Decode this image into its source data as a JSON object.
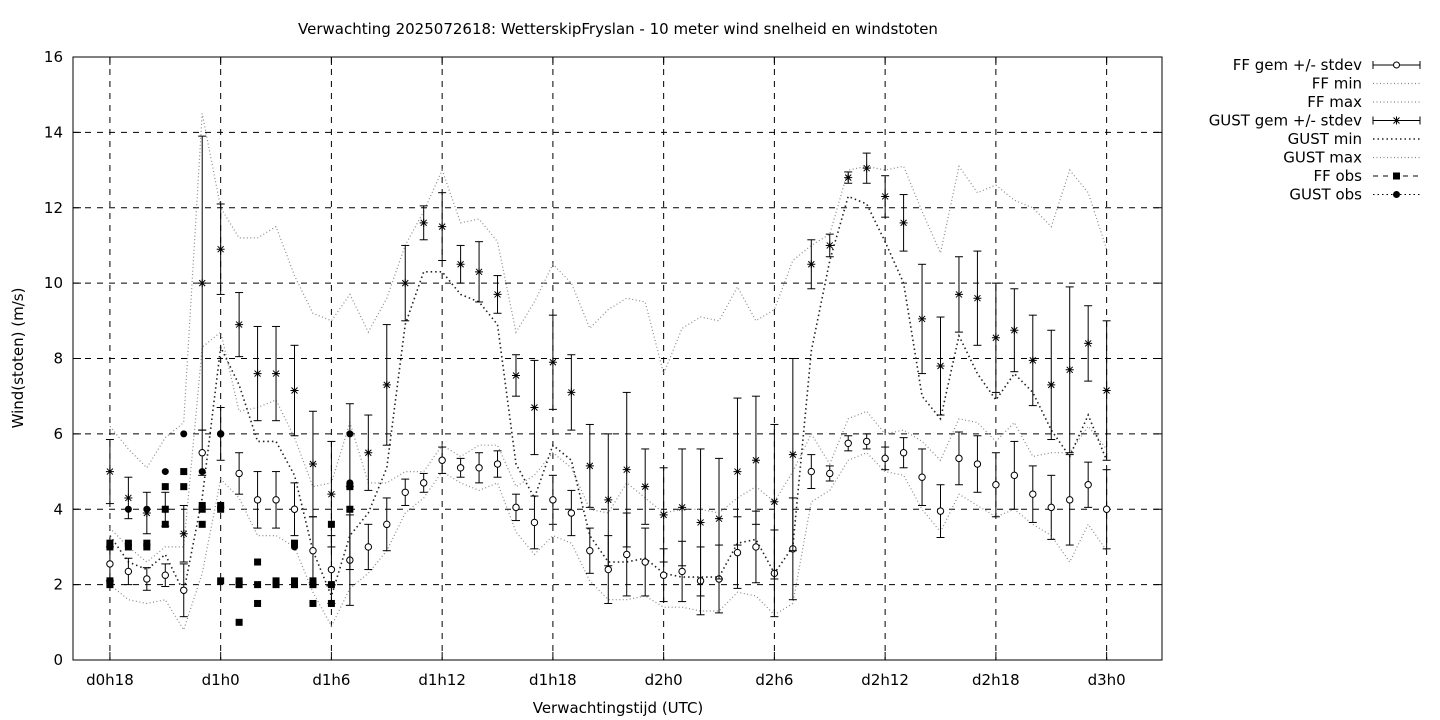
{
  "chart_data": {
    "type": "line",
    "title": "Verwachting 2025072618: WetterskipFryslan - 10 meter wind snelheid en windstoten",
    "xlabel": "Verwachtingstijd (UTC)",
    "ylabel": "Wind(stoten) (m/s)",
    "xlim": [
      16,
      75
    ],
    "ylim": [
      0,
      16
    ],
    "grid": true,
    "legend_position": "outside-right",
    "x_ticks": [
      {
        "x": 18,
        "label": "d0h18"
      },
      {
        "x": 24,
        "label": "d1h0"
      },
      {
        "x": 30,
        "label": "d1h6"
      },
      {
        "x": 36,
        "label": "d1h12"
      },
      {
        "x": 42,
        "label": "d1h18"
      },
      {
        "x": 48,
        "label": "d2h0"
      },
      {
        "x": 54,
        "label": "d2h6"
      },
      {
        "x": 60,
        "label": "d2h12"
      },
      {
        "x": 66,
        "label": "d2h18"
      },
      {
        "x": 72,
        "label": "d3h0"
      }
    ],
    "y_ticks": [
      {
        "y": 0,
        "label": "0"
      },
      {
        "y": 2,
        "label": "2"
      },
      {
        "y": 4,
        "label": "4"
      },
      {
        "y": 6,
        "label": "6"
      },
      {
        "y": 8,
        "label": "8"
      },
      {
        "y": 10,
        "label": "10"
      },
      {
        "y": 12,
        "label": "12"
      },
      {
        "y": 14,
        "label": "14"
      },
      {
        "y": 16,
        "label": "16"
      }
    ],
    "x": [
      18,
      19,
      20,
      21,
      22,
      23,
      24,
      25,
      26,
      27,
      28,
      29,
      30,
      31,
      32,
      33,
      34,
      35,
      36,
      37,
      38,
      39,
      40,
      41,
      42,
      43,
      44,
      45,
      46,
      47,
      48,
      49,
      50,
      51,
      52,
      53,
      54,
      55,
      56,
      57,
      58,
      59,
      60,
      61,
      62,
      63,
      64,
      65,
      66,
      67,
      68,
      69,
      70,
      71,
      72
    ],
    "series": [
      {
        "name": "FF gem +/- stdev",
        "style": "errorbar-open-circle",
        "mean": [
          2.55,
          2.35,
          2.15,
          2.25,
          1.85,
          5.5,
          6.0,
          4.95,
          4.25,
          4.25,
          4.0,
          2.9,
          2.4,
          2.65,
          3.0,
          3.6,
          4.45,
          4.7,
          5.3,
          5.1,
          5.1,
          5.2,
          4.05,
          3.65,
          4.25,
          3.9,
          2.9,
          2.4,
          2.8,
          2.6,
          2.25,
          2.35,
          2.1,
          2.15,
          2.85,
          3.0,
          2.3,
          2.95,
          5.0,
          4.95,
          5.75,
          5.8,
          5.35,
          5.5,
          4.85,
          3.95,
          5.35,
          5.2,
          4.65,
          4.9,
          4.4,
          4.05,
          4.25,
          4.65,
          4.0
        ],
        "stdev": [
          0.45,
          0.35,
          0.3,
          0.3,
          0.7,
          0.6,
          0.7,
          0.55,
          0.75,
          0.75,
          0.7,
          0.9,
          0.9,
          1.2,
          0.6,
          0.7,
          0.35,
          0.25,
          0.35,
          0.25,
          0.4,
          0.35,
          0.35,
          0.7,
          0.65,
          0.6,
          0.6,
          0.9,
          1.1,
          0.9,
          0.7,
          0.8,
          0.9,
          0.9,
          0.95,
          0.95,
          1.15,
          1.35,
          0.45,
          0.2,
          0.2,
          0.2,
          0.3,
          0.4,
          0.75,
          0.7,
          0.7,
          0.75,
          0.85,
          0.9,
          0.75,
          0.85,
          1.2,
          0.6,
          1.05
        ]
      },
      {
        "name": "FF min",
        "style": "dotted",
        "values": [
          2.0,
          1.6,
          1.5,
          1.6,
          0.8,
          2.3,
          4.8,
          4.3,
          3.3,
          3.3,
          3.0,
          1.8,
          0.9,
          1.9,
          2.3,
          2.9,
          3.9,
          4.3,
          5.0,
          4.7,
          4.5,
          4.7,
          3.4,
          2.8,
          3.3,
          3.1,
          2.1,
          1.6,
          1.6,
          1.7,
          1.4,
          1.4,
          1.3,
          1.3,
          1.8,
          1.7,
          1.2,
          1.5,
          4.2,
          4.5,
          5.3,
          5.5,
          5.0,
          4.9,
          4.0,
          3.4,
          4.4,
          4.1,
          3.8,
          4.0,
          3.6,
          3.3,
          2.6,
          3.6,
          2.9
        ]
      },
      {
        "name": "FF max",
        "style": "dotted",
        "values": [
          3.5,
          3.0,
          2.6,
          3.0,
          3.0,
          8.3,
          8.7,
          6.6,
          6.7,
          6.9,
          5.9,
          4.6,
          4.7,
          6.3,
          4.7,
          4.7,
          5.0,
          5.0,
          5.7,
          5.4,
          5.7,
          5.7,
          4.6,
          4.9,
          5.5,
          5.1,
          4.0,
          3.9,
          4.7,
          4.3,
          3.9,
          4.0,
          4.0,
          3.9,
          4.3,
          4.6,
          4.2,
          5.0,
          6.0,
          5.2,
          6.4,
          6.6,
          6.0,
          6.1,
          5.8,
          5.3,
          6.4,
          6.3,
          5.8,
          6.3,
          5.4,
          5.5,
          5.5,
          6.2,
          5.6
        ]
      },
      {
        "name": "GUST gem +/- stdev",
        "style": "errorbar-star",
        "mean": [
          5.0,
          4.3,
          3.9,
          4.0,
          3.35,
          10.0,
          10.9,
          8.9,
          7.6,
          7.6,
          7.15,
          5.2,
          4.4,
          4.6,
          5.5,
          7.3,
          10.0,
          11.6,
          11.5,
          10.5,
          10.3,
          9.7,
          7.55,
          6.7,
          7.9,
          7.1,
          5.15,
          4.25,
          5.05,
          4.6,
          3.85,
          4.05,
          3.65,
          3.75,
          5.0,
          5.3,
          4.2,
          5.45,
          10.5,
          11.0,
          12.8,
          13.05,
          12.3,
          11.6,
          9.05,
          7.8,
          9.7,
          9.6,
          8.55,
          8.75,
          7.95,
          7.3,
          7.7,
          8.4,
          7.15
        ],
        "stdev": [
          0.85,
          0.55,
          0.55,
          0.45,
          0.75,
          3.9,
          1.2,
          0.85,
          1.25,
          1.25,
          1.2,
          1.4,
          1.4,
          2.2,
          1.0,
          1.6,
          1.0,
          0.45,
          0.9,
          0.5,
          0.8,
          0.5,
          0.55,
          1.25,
          1.25,
          1.0,
          1.1,
          1.75,
          2.05,
          1.0,
          1.25,
          1.55,
          1.95,
          1.6,
          1.95,
          1.7,
          2.05,
          2.55,
          0.65,
          0.3,
          0.15,
          0.4,
          0.55,
          0.75,
          1.45,
          1.3,
          1.0,
          1.25,
          1.45,
          1.1,
          1.2,
          1.45,
          2.2,
          1.0,
          1.85
        ]
      },
      {
        "name": "GUST min",
        "style": "dotted-dense",
        "values": [
          3.3,
          2.6,
          2.4,
          2.8,
          1.8,
          4.3,
          8.3,
          7.3,
          5.8,
          5.8,
          4.9,
          2.9,
          1.7,
          3.3,
          3.9,
          5.1,
          8.9,
          10.3,
          10.3,
          9.7,
          9.5,
          8.9,
          5.2,
          4.3,
          5.7,
          5.3,
          3.3,
          2.6,
          2.6,
          2.7,
          2.3,
          2.2,
          2.2,
          2.2,
          3.1,
          3.2,
          2.3,
          3.0,
          8.2,
          10.6,
          12.3,
          12.1,
          11.1,
          10.0,
          7.0,
          6.4,
          8.6,
          7.6,
          6.9,
          7.6,
          7.1,
          6.1,
          5.4,
          6.5,
          5.3
        ]
      },
      {
        "name": "GUST max",
        "style": "dotted",
        "values": [
          6.2,
          5.6,
          5.1,
          5.9,
          6.3,
          14.5,
          12.0,
          11.2,
          11.2,
          11.5,
          10.2,
          9.2,
          9.0,
          9.7,
          8.7,
          9.6,
          11.0,
          11.9,
          13.0,
          11.6,
          11.7,
          11.1,
          8.7,
          9.5,
          10.5,
          10.0,
          8.8,
          9.3,
          9.6,
          9.5,
          7.6,
          8.8,
          9.1,
          9.0,
          9.9,
          9.0,
          9.3,
          10.6,
          11.0,
          11.3,
          13.0,
          13.1,
          13.0,
          13.1,
          11.9,
          10.8,
          13.1,
          12.4,
          12.6,
          12.2,
          12.0,
          11.5,
          13.0,
          12.4,
          10.9
        ]
      }
    ],
    "observations": [
      {
        "name": "FF obs",
        "style": "square",
        "points": [
          [
            18,
            2.0
          ],
          [
            18,
            2.1
          ],
          [
            18,
            3.0
          ],
          [
            18,
            3.1
          ],
          [
            19,
            3.0
          ],
          [
            19,
            3.1
          ],
          [
            20,
            3.0
          ],
          [
            20,
            3.1
          ],
          [
            21,
            3.6
          ],
          [
            21,
            4.0
          ],
          [
            21,
            4.6
          ],
          [
            22,
            4.6
          ],
          [
            22,
            5.0
          ],
          [
            23,
            3.6
          ],
          [
            23,
            4.0
          ],
          [
            23,
            4.1
          ],
          [
            24,
            4.0
          ],
          [
            24,
            4.1
          ],
          [
            24,
            2.1
          ],
          [
            25,
            2.0
          ],
          [
            25,
            2.1
          ],
          [
            25,
            1.0
          ],
          [
            26,
            1.5
          ],
          [
            26,
            2.0
          ],
          [
            26,
            2.6
          ],
          [
            27,
            2.0
          ],
          [
            27,
            2.1
          ],
          [
            28,
            2.0
          ],
          [
            28,
            2.1
          ],
          [
            28,
            3.1
          ],
          [
            29,
            1.5
          ],
          [
            29,
            2.0
          ],
          [
            29,
            2.1
          ],
          [
            30,
            1.5
          ],
          [
            30,
            2.0
          ],
          [
            30,
            3.6
          ],
          [
            31,
            4.0
          ],
          [
            31,
            4.6
          ]
        ]
      },
      {
        "name": "GUST obs",
        "style": "circle",
        "points": [
          [
            19,
            4.0
          ],
          [
            20,
            4.0
          ],
          [
            21,
            5.0
          ],
          [
            22,
            6.0
          ],
          [
            23,
            5.0
          ],
          [
            24,
            6.0
          ],
          [
            28,
            3.0
          ],
          [
            31,
            4.7
          ],
          [
            31,
            6.0
          ]
        ]
      }
    ],
    "legend": [
      {
        "label": "FF gem +/- stdev",
        "marker": "open-circle-errorbar"
      },
      {
        "label": "FF min",
        "marker": "dotted"
      },
      {
        "label": "FF max",
        "marker": "dotted"
      },
      {
        "label": "GUST gem +/- stdev",
        "marker": "star-errorbar"
      },
      {
        "label": "GUST min",
        "marker": "dotted-dense"
      },
      {
        "label": "GUST max",
        "marker": "dotted"
      },
      {
        "label": "FF obs",
        "marker": "square-dashed"
      },
      {
        "label": "GUST obs",
        "marker": "circle-dotted"
      }
    ]
  }
}
